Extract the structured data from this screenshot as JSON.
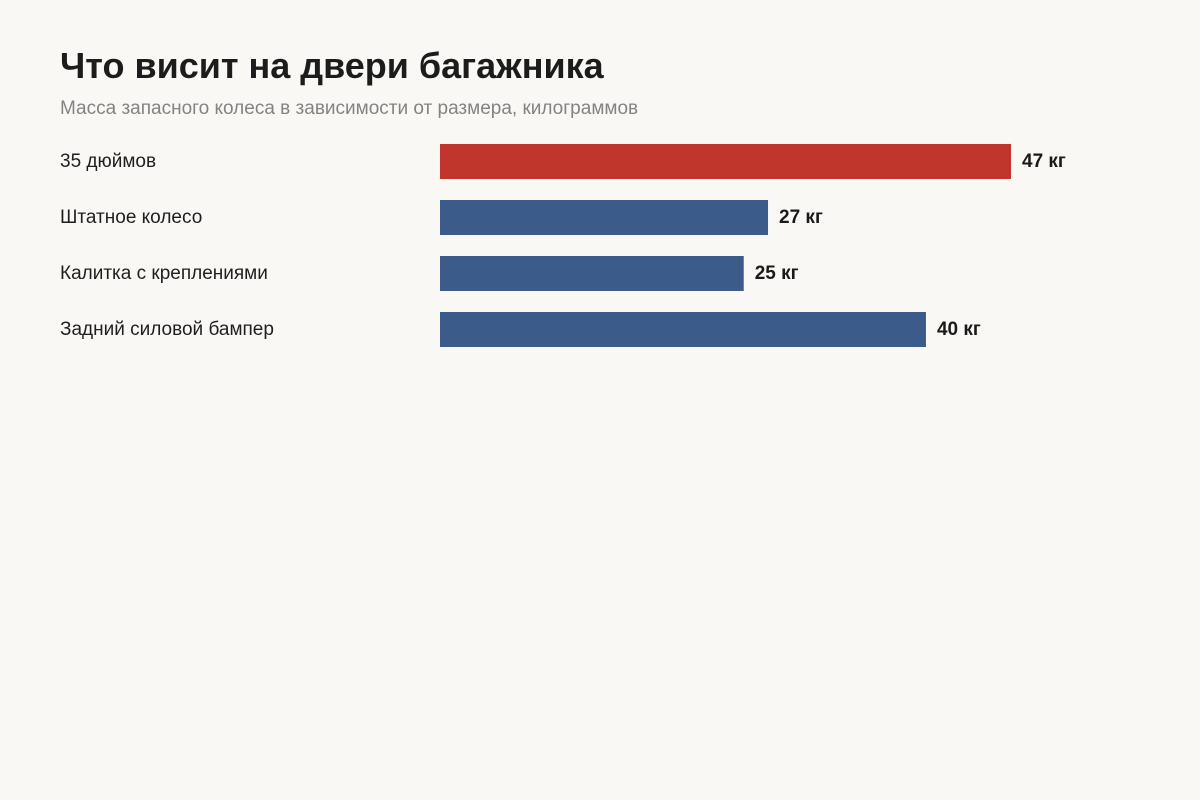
{
  "chart_data": {
    "type": "bar",
    "orientation": "horizontal",
    "title": "Что висит на двери багажника",
    "subtitle": "Масса запасного колеса в зависимости от размера, килограммов",
    "categories": [
      "35 дюймов",
      "Штатное колесо",
      "Калитка с креплениями",
      "Задний силовой бампер"
    ],
    "values": [
      47,
      27,
      25,
      40
    ],
    "value_labels": [
      "47 кг",
      "27 кг",
      "25 кг",
      "40 кг"
    ],
    "highlight_color": "#c0362c",
    "bar_color": "#3b5b8a",
    "highlight_index": 0,
    "xlim": [
      0,
      47
    ],
    "grid": false,
    "legend": "none"
  }
}
